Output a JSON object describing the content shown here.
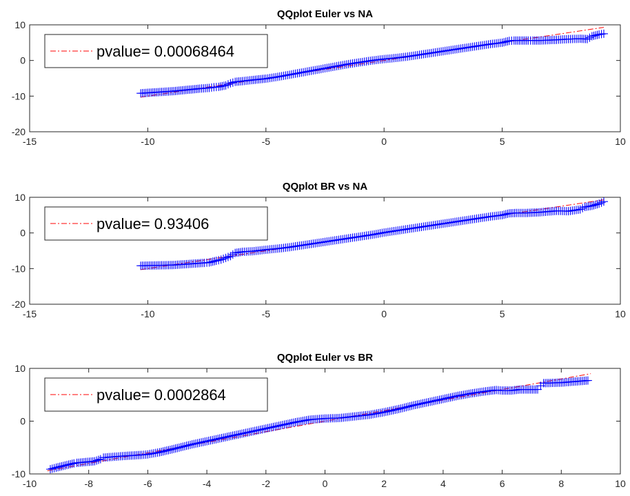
{
  "chart_data": [
    {
      "type": "scatter",
      "title": "QQplot Euler vs NA",
      "xlim": [
        -15,
        10
      ],
      "ylim": [
        -20,
        10
      ],
      "xticks": [
        -15,
        -10,
        -5,
        0,
        5,
        10
      ],
      "yticks": [
        -20,
        -10,
        0,
        10
      ],
      "xtick_labels": [
        "-15",
        "-10",
        "-5",
        "0",
        "5",
        "10"
      ],
      "ytick_labels": [
        "-20",
        "-10",
        "0",
        "10"
      ],
      "legend": {
        "label": "pvalue= 0.00068464",
        "placement": "top-left"
      },
      "reference_line": {
        "x": [
          -10.3,
          9.3
        ],
        "y": [
          -10.3,
          9.3
        ]
      },
      "series": [
        {
          "values": [
            [
              -10.3,
              -9.2
            ],
            [
              -8.9,
              -8.6
            ],
            [
              -7.8,
              -7.9
            ],
            [
              -7.4,
              -7.7
            ],
            [
              -7.2,
              -7.5
            ],
            [
              -7.0,
              -7.4
            ],
            [
              -6.7,
              -7.0
            ],
            [
              -6.5,
              -6.4
            ],
            [
              -6.3,
              -6.0
            ],
            [
              -6.0,
              -5.8
            ],
            [
              -5.6,
              -5.5
            ],
            [
              -5.0,
              -5.1
            ],
            [
              -4.5,
              -4.6
            ],
            [
              -4.0,
              -4.0
            ],
            [
              -3.5,
              -3.4
            ],
            [
              -3.0,
              -2.8
            ],
            [
              -2.5,
              -2.2
            ],
            [
              -2.0,
              -1.6
            ],
            [
              -1.5,
              -1.0
            ],
            [
              -1.0,
              -0.5
            ],
            [
              -0.5,
              0.0
            ],
            [
              0.0,
              0.4
            ],
            [
              0.5,
              0.7
            ],
            [
              1.0,
              1.1
            ],
            [
              1.5,
              1.6
            ],
            [
              2.0,
              2.1
            ],
            [
              2.5,
              2.6
            ],
            [
              3.0,
              3.1
            ],
            [
              3.5,
              3.6
            ],
            [
              4.0,
              4.1
            ],
            [
              4.5,
              4.6
            ],
            [
              5.0,
              5.0
            ],
            [
              5.3,
              5.5
            ],
            [
              5.5,
              5.6
            ],
            [
              5.8,
              5.6
            ],
            [
              6.1,
              5.6
            ],
            [
              6.3,
              5.6
            ],
            [
              6.6,
              5.6
            ],
            [
              7.3,
              5.8
            ],
            [
              7.8,
              6.0
            ],
            [
              8.3,
              6.1
            ],
            [
              8.6,
              6.0
            ],
            [
              8.8,
              6.8
            ],
            [
              9.1,
              7.3
            ],
            [
              9.3,
              7.5
            ]
          ]
        }
      ]
    },
    {
      "type": "scatter",
      "title": "QQplot BR vs NA",
      "xlim": [
        -15,
        10
      ],
      "ylim": [
        -20,
        10
      ],
      "xticks": [
        -15,
        -10,
        -5,
        0,
        5,
        10
      ],
      "yticks": [
        -20,
        -10,
        0,
        10
      ],
      "xtick_labels": [
        "-15",
        "-10",
        "-5",
        "0",
        "5",
        "10"
      ],
      "ytick_labels": [
        "-20",
        "-10",
        "0",
        "10"
      ],
      "legend": {
        "label": "pvalue= 0.93406",
        "placement": "top-left"
      },
      "reference_line": {
        "x": [
          -10.3,
          9.3
        ],
        "y": [
          -10.3,
          9.3
        ]
      },
      "series": [
        {
          "values": [
            [
              -10.3,
              -9.2
            ],
            [
              -8.9,
              -9.0
            ],
            [
              -7.6,
              -8.4
            ],
            [
              -7.4,
              -8.3
            ],
            [
              -7.1,
              -7.8
            ],
            [
              -6.9,
              -7.5
            ],
            [
              -6.7,
              -7.0
            ],
            [
              -6.5,
              -6.5
            ],
            [
              -6.3,
              -5.6
            ],
            [
              -6.0,
              -5.3
            ],
            [
              -5.5,
              -5.1
            ],
            [
              -5.0,
              -4.7
            ],
            [
              -4.5,
              -4.4
            ],
            [
              -4.0,
              -4.0
            ],
            [
              -3.5,
              -3.5
            ],
            [
              -3.0,
              -3.0
            ],
            [
              -2.5,
              -2.5
            ],
            [
              -2.0,
              -2.0
            ],
            [
              -1.5,
              -1.5
            ],
            [
              -1.0,
              -1.0
            ],
            [
              -0.5,
              -0.5
            ],
            [
              0.0,
              0.1
            ],
            [
              0.5,
              0.6
            ],
            [
              1.0,
              1.1
            ],
            [
              1.5,
              1.6
            ],
            [
              2.0,
              2.1
            ],
            [
              2.5,
              2.6
            ],
            [
              3.0,
              3.1
            ],
            [
              3.5,
              3.6
            ],
            [
              4.0,
              4.1
            ],
            [
              4.5,
              4.6
            ],
            [
              5.0,
              5.0
            ],
            [
              5.3,
              5.5
            ],
            [
              5.6,
              5.6
            ],
            [
              6.0,
              5.6
            ],
            [
              6.3,
              5.7
            ],
            [
              6.6,
              5.8
            ],
            [
              7.3,
              6.2
            ],
            [
              7.8,
              6.1
            ],
            [
              8.3,
              6.6
            ],
            [
              8.5,
              7.3
            ],
            [
              8.8,
              7.6
            ],
            [
              9.1,
              8.2
            ],
            [
              9.3,
              8.8
            ]
          ]
        }
      ]
    },
    {
      "type": "scatter",
      "title": "QQplot Euler vs BR",
      "xlim": [
        -10,
        10
      ],
      "ylim": [
        -10,
        10
      ],
      "xticks": [
        -10,
        -8,
        -6,
        -4,
        -2,
        0,
        2,
        4,
        6,
        8,
        10
      ],
      "yticks": [
        -10,
        0,
        10
      ],
      "xtick_labels": [
        "-10",
        "-8",
        "-6",
        "-4",
        "-2",
        "0",
        "2",
        "4",
        "6",
        "8",
        "10"
      ],
      "ytick_labels": [
        "-10",
        "0",
        "10"
      ],
      "legend": {
        "label": "pvalue= 0.0002864",
        "placement": "top-left"
      },
      "reference_line": {
        "x": [
          -9.4,
          9.0
        ],
        "y": [
          -9.4,
          9.0
        ]
      },
      "series": [
        {
          "values": [
            [
              -9.3,
              -9.1
            ],
            [
              -9.1,
              -8.8
            ],
            [
              -8.5,
              -8.0
            ],
            [
              -8.4,
              -7.9
            ],
            [
              -7.8,
              -7.6
            ],
            [
              -7.6,
              -7.2
            ],
            [
              -7.5,
              -6.9
            ],
            [
              -6.8,
              -6.6
            ],
            [
              -6.5,
              -6.5
            ],
            [
              -6.2,
              -6.4
            ],
            [
              -6.0,
              -6.3
            ],
            [
              -5.6,
              -5.9
            ],
            [
              -5.0,
              -5.1
            ],
            [
              -4.5,
              -4.4
            ],
            [
              -4.0,
              -3.8
            ],
            [
              -3.5,
              -3.2
            ],
            [
              -3.0,
              -2.6
            ],
            [
              -2.5,
              -2.0
            ],
            [
              -2.0,
              -1.4
            ],
            [
              -1.5,
              -0.8
            ],
            [
              -1.0,
              -0.2
            ],
            [
              -0.5,
              0.3
            ],
            [
              0.0,
              0.5
            ],
            [
              0.5,
              0.6
            ],
            [
              1.0,
              0.9
            ],
            [
              1.5,
              1.2
            ],
            [
              2.0,
              1.7
            ],
            [
              2.5,
              2.3
            ],
            [
              3.0,
              3.0
            ],
            [
              3.5,
              3.6
            ],
            [
              4.0,
              4.2
            ],
            [
              4.5,
              4.8
            ],
            [
              5.0,
              5.3
            ],
            [
              5.5,
              5.7
            ],
            [
              5.8,
              5.9
            ],
            [
              6.0,
              5.8
            ],
            [
              6.3,
              5.8
            ],
            [
              6.6,
              6.0
            ],
            [
              7.2,
              6.0
            ],
            [
              7.3,
              6.7
            ],
            [
              7.4,
              7.2
            ],
            [
              8.0,
              7.3
            ],
            [
              8.9,
              7.7
            ]
          ]
        }
      ]
    }
  ]
}
